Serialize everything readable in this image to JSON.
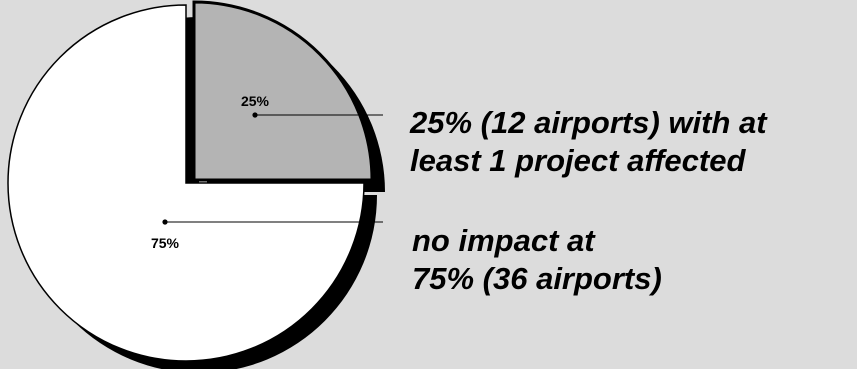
{
  "chart_data": {
    "type": "pie",
    "slices": [
      {
        "label": "25%",
        "value": 25,
        "count": 12,
        "description": [
          "25% (12 airports) with at",
          "least 1 project affected"
        ],
        "color": "#b4b4b4"
      },
      {
        "label": "75%",
        "value": 75,
        "count": 36,
        "description": [
          "no impact at",
          "75% (36 airports)"
        ],
        "color": "#ffffff"
      }
    ],
    "style": "exploded-slice-with-3d-shadow",
    "shadow_color": "#000000",
    "background": "#dcdcdc"
  }
}
